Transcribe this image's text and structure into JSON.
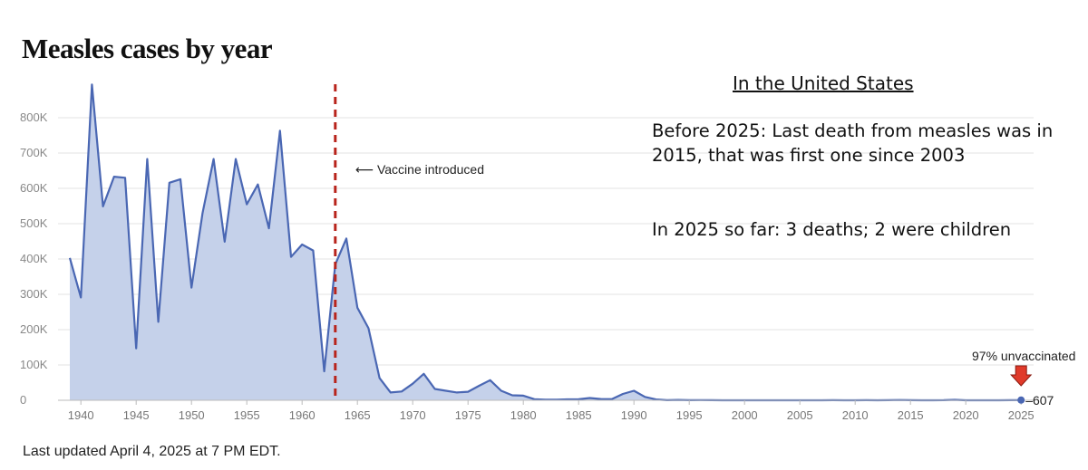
{
  "title": "Measles cases by year",
  "annotation": {
    "heading": "In the United States",
    "text1": "Before 2025: Last death from measles was in 2015, that was first one since 2003",
    "text2": "In 2025 so far: 3 deaths; 2 were children"
  },
  "footnote": "Last updated April 4, 2025 at 7 PM EDT.",
  "colors": {
    "line": "#4a67b3",
    "fill": "#c5d1ea",
    "vaccine_line": "#b8241c",
    "marker_arrow": "#e03a2a",
    "grid": "#e3e3e3"
  },
  "chart_data": {
    "type": "area",
    "title": "Measles cases by year",
    "xlabel": "",
    "ylabel": "",
    "xlim": [
      1939,
      2025
    ],
    "ylim": [
      0,
      850000
    ],
    "y_ticks": [
      0,
      100000,
      200000,
      300000,
      400000,
      500000,
      600000,
      700000,
      800000
    ],
    "y_tick_labels": [
      "0",
      "100K",
      "200K",
      "300K",
      "400K",
      "500K",
      "600K",
      "700K",
      "800K"
    ],
    "x_ticks": [
      1940,
      1945,
      1950,
      1955,
      1960,
      1965,
      1970,
      1975,
      1980,
      1985,
      1990,
      1995,
      2000,
      2005,
      2010,
      2015,
      2020,
      2025
    ],
    "x_tick_labels": [
      "1940",
      "1945",
      "1950",
      "1955",
      "1960",
      "1965",
      "1970",
      "1975",
      "1980",
      "1985",
      "1990",
      "1995",
      "2000",
      "2005",
      "2010",
      "2015",
      "2020",
      "2025"
    ],
    "grid": true,
    "vaccine_year": 1963,
    "vaccine_label": "⟵ Vaccine introduced",
    "end_note": "97% unvaccinated",
    "end_value_label": "607",
    "x": [
      1939,
      1940,
      1941,
      1942,
      1943,
      1944,
      1945,
      1946,
      1947,
      1948,
      1949,
      1950,
      1951,
      1952,
      1953,
      1954,
      1955,
      1956,
      1957,
      1958,
      1959,
      1960,
      1961,
      1962,
      1963,
      1964,
      1965,
      1966,
      1967,
      1968,
      1969,
      1970,
      1971,
      1972,
      1973,
      1974,
      1975,
      1976,
      1977,
      1978,
      1979,
      1980,
      1981,
      1982,
      1983,
      1984,
      1985,
      1986,
      1987,
      1988,
      1989,
      1990,
      1991,
      1992,
      1993,
      1994,
      1995,
      1996,
      1997,
      1998,
      1999,
      2000,
      2001,
      2002,
      2003,
      2004,
      2005,
      2006,
      2007,
      2008,
      2009,
      2010,
      2011,
      2012,
      2013,
      2014,
      2015,
      2016,
      2017,
      2018,
      2019,
      2020,
      2021,
      2022,
      2023,
      2024,
      2025
    ],
    "values": [
      403000,
      291000,
      894000,
      549000,
      633000,
      630000,
      147000,
      683000,
      222000,
      616000,
      626000,
      319000,
      530000,
      683000,
      449000,
      683000,
      555000,
      611000,
      487000,
      763000,
      406000,
      441000,
      424000,
      82000,
      385000,
      458000,
      262000,
      204000,
      63000,
      22000,
      25000,
      47000,
      75000,
      32000,
      27000,
      22000,
      24000,
      41000,
      57000,
      27000,
      14000,
      13000,
      3000,
      1700,
      1500,
      2600,
      2800,
      6300,
      3700,
      3400,
      18000,
      27000,
      9600,
      2200,
      300,
      960,
      300,
      500,
      140,
      100,
      100,
      86,
      116,
      44,
      56,
      37,
      66,
      55,
      43,
      140,
      71,
      63,
      220,
      55,
      187,
      667,
      188,
      86,
      120,
      375,
      1274,
      13,
      49,
      121,
      59,
      285,
      607
    ]
  }
}
